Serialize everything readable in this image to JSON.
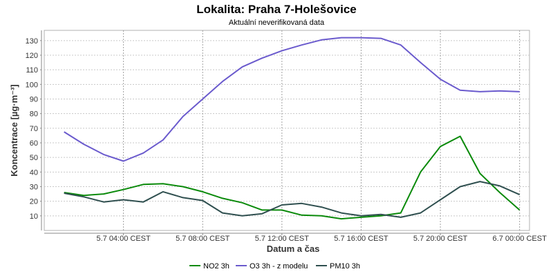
{
  "chart_data": {
    "type": "line",
    "title": "Lokalita: Praha 7-Holešovice",
    "subtitle": "Aktuální neverifikovaná data",
    "xlabel": "Datum a čas",
    "ylabel": "Koncentrace [µg·m⁻³]",
    "x_hours": [
      1,
      2,
      3,
      4,
      5,
      6,
      7,
      8,
      9,
      10,
      11,
      12,
      13,
      14,
      15,
      16,
      17,
      18,
      19,
      20,
      21,
      22,
      23,
      24
    ],
    "xlim": [
      0,
      24.5
    ],
    "ylim": [
      0,
      137
    ],
    "y_ticks": [
      10,
      20,
      30,
      40,
      50,
      60,
      70,
      80,
      90,
      100,
      110,
      120,
      130
    ],
    "x_ticks": [
      {
        "hour": 4,
        "label": "5.7 04:00 CEST"
      },
      {
        "hour": 8,
        "label": "5.7 08:00 CEST"
      },
      {
        "hour": 12,
        "label": "5.7 12:00 CEST"
      },
      {
        "hour": 16,
        "label": "5.7 16:00 CEST"
      },
      {
        "hour": 20,
        "label": "5.7 20:00 CEST"
      },
      {
        "hour": 24,
        "label": "6.7 00:00 CEST"
      }
    ],
    "grid": true,
    "legend_position": "bottom",
    "series": [
      {
        "name": "NO2 3h",
        "color": "#0a8a0a",
        "values": [
          26,
          24,
          25,
          28,
          31.5,
          32,
          30,
          26.5,
          22,
          19,
          14,
          14,
          10.5,
          10,
          8,
          9,
          10,
          12,
          40,
          57.5,
          64.5,
          39,
          26,
          14
        ]
      },
      {
        "name": "O3 3h - z modelu",
        "color": "#6a5acd",
        "values": [
          67.5,
          59,
          52,
          47.5,
          53,
          62,
          78,
          90,
          102,
          112,
          118,
          123,
          127,
          130.5,
          132,
          132,
          131.5,
          127,
          115,
          103.5,
          96,
          95,
          95.5,
          95
        ]
      },
      {
        "name": "PM10 3h",
        "color": "#2f4f4f",
        "values": [
          25.5,
          23,
          19.5,
          21,
          19.5,
          26.5,
          22.5,
          20.5,
          12,
          10,
          11.5,
          17.5,
          18.5,
          16,
          12,
          10,
          11,
          9,
          12,
          21,
          30,
          33.5,
          30.5,
          24.5
        ]
      }
    ]
  }
}
